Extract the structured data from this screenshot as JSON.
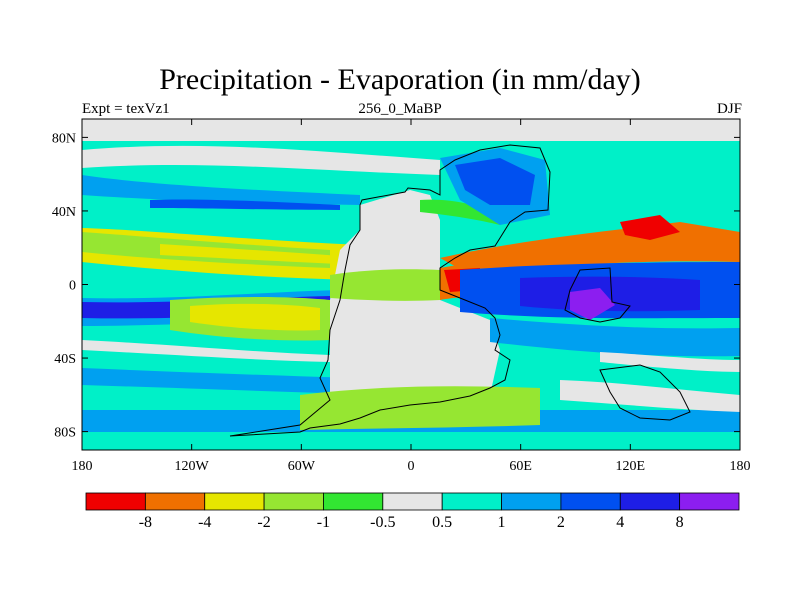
{
  "title": "Precipitation - Evaporation (in mm/day)",
  "subtitle_left": "Expt = texVz1",
  "subtitle_center": "256_0_MaBP",
  "subtitle_right": "DJF",
  "map": {
    "lon_range": [
      -180,
      180
    ],
    "lat_range": [
      -90,
      90
    ],
    "lon_ticks": [
      {
        "value": -180,
        "label": "180"
      },
      {
        "value": -120,
        "label": "120W"
      },
      {
        "value": -60,
        "label": "60W"
      },
      {
        "value": 0,
        "label": "0"
      },
      {
        "value": 60,
        "label": "60E"
      },
      {
        "value": 120,
        "label": "120E"
      },
      {
        "value": 180,
        "label": "180"
      }
    ],
    "lat_ticks": [
      {
        "value": 80,
        "label": "80N"
      },
      {
        "value": 40,
        "label": "40N"
      },
      {
        "value": 0,
        "label": "0"
      },
      {
        "value": -40,
        "label": "40S"
      },
      {
        "value": -80,
        "label": "80S"
      }
    ]
  },
  "colorbar": {
    "colors": [
      "#f00000",
      "#f07000",
      "#e6e600",
      "#96e632",
      "#32e632",
      "#e6e6e6",
      "#00f0c8",
      "#00a0f0",
      "#0050f0",
      "#1e1ee6",
      "#8c1ef0"
    ],
    "labels": [
      "-8",
      "-4",
      "-2",
      "-1",
      "-0.5",
      "0.5",
      "1",
      "2",
      "4",
      "8"
    ]
  }
}
